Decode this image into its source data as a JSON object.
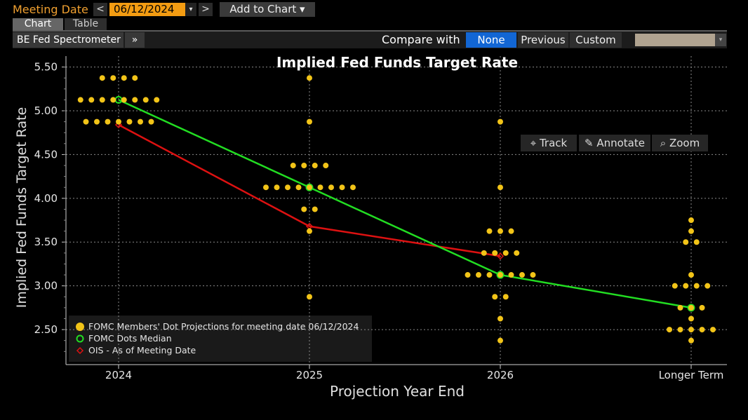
{
  "header": {
    "meeting_label": "Meeting Date",
    "prev": "<",
    "date_value": "06/12/2024",
    "date_caret": "▾",
    "next": ">",
    "add_to_chart": "Add to Chart ▾"
  },
  "tabs": [
    {
      "label": "Chart",
      "active": true
    },
    {
      "label": "Table",
      "active": false
    }
  ],
  "toolbar": {
    "source": "BE Fed Spectrometer",
    "more": "»",
    "compare_label": "Compare with",
    "compare_options": [
      "None",
      "Previous",
      "Custom"
    ],
    "selected": "None",
    "dropdown_caret": "▾"
  },
  "tools": {
    "track": "Track",
    "annotate": "Annotate",
    "zoom": "Zoom"
  },
  "icons": [
    "crosshair-icon",
    "pencil-icon",
    "magnifier-icon",
    "chevron-double-right-icon"
  ],
  "colors": {
    "dots": "#f2c418",
    "median": "#22dd22",
    "ois": "#dd1111",
    "accent": "#f39c12",
    "selected": "#1266d4"
  },
  "chart_data": {
    "type": "scatter",
    "title": "Implied Fed Funds Target Rate",
    "xlabel": "Projection Year End",
    "ylabel": "Implied Fed Funds Target Rate",
    "categories": [
      "2024",
      "2025",
      "2026",
      "Longer Term"
    ],
    "ylim": [
      2.1,
      5.625
    ],
    "yticks": [
      "2.50",
      "3.00",
      "3.50",
      "4.00",
      "4.50",
      "5.00",
      "5.50"
    ],
    "grid": true,
    "legend_position": "bottom-left",
    "series": [
      {
        "name": "FOMC Members' Dot Projections for meeting date 06/12/2024",
        "points": [
          {
            "x": "2024",
            "y": 5.375,
            "count": 4
          },
          {
            "x": "2024",
            "y": 5.125,
            "count": 8
          },
          {
            "x": "2024",
            "y": 4.875,
            "count": 7
          },
          {
            "x": "2025",
            "y": 5.375,
            "count": 1
          },
          {
            "x": "2025",
            "y": 4.875,
            "count": 1
          },
          {
            "x": "2025",
            "y": 4.375,
            "count": 4
          },
          {
            "x": "2025",
            "y": 4.125,
            "count": 9
          },
          {
            "x": "2025",
            "y": 3.875,
            "count": 2
          },
          {
            "x": "2025",
            "y": 3.625,
            "count": 1
          },
          {
            "x": "2025",
            "y": 2.875,
            "count": 1
          },
          {
            "x": "2026",
            "y": 4.875,
            "count": 1
          },
          {
            "x": "2026",
            "y": 4.125,
            "count": 1
          },
          {
            "x": "2026",
            "y": 3.625,
            "count": 3
          },
          {
            "x": "2026",
            "y": 3.375,
            "count": 4
          },
          {
            "x": "2026",
            "y": 3.125,
            "count": 7
          },
          {
            "x": "2026",
            "y": 2.875,
            "count": 2
          },
          {
            "x": "2026",
            "y": 2.625,
            "count": 1
          },
          {
            "x": "2026",
            "y": 2.375,
            "count": 1
          },
          {
            "x": "Longer Term",
            "y": 3.75,
            "count": 1
          },
          {
            "x": "Longer Term",
            "y": 3.625,
            "count": 1
          },
          {
            "x": "Longer Term",
            "y": 3.5,
            "count": 2
          },
          {
            "x": "Longer Term",
            "y": 3.125,
            "count": 1
          },
          {
            "x": "Longer Term",
            "y": 3.0,
            "count": 4
          },
          {
            "x": "Longer Term",
            "y": 2.75,
            "count": 3
          },
          {
            "x": "Longer Term",
            "y": 2.625,
            "count": 1
          },
          {
            "x": "Longer Term",
            "y": 2.5,
            "count": 5
          },
          {
            "x": "Longer Term",
            "y": 2.375,
            "count": 1
          }
        ]
      },
      {
        "name": "FOMC Dots Median",
        "x": [
          "2024",
          "2025",
          "2026",
          "Longer Term"
        ],
        "values": [
          5.125,
          4.125,
          3.125,
          2.75
        ]
      },
      {
        "name": "OIS - As of Meeting Date",
        "x": [
          "2024",
          "2025",
          "2026"
        ],
        "values": [
          4.84,
          3.68,
          3.34
        ]
      }
    ]
  }
}
